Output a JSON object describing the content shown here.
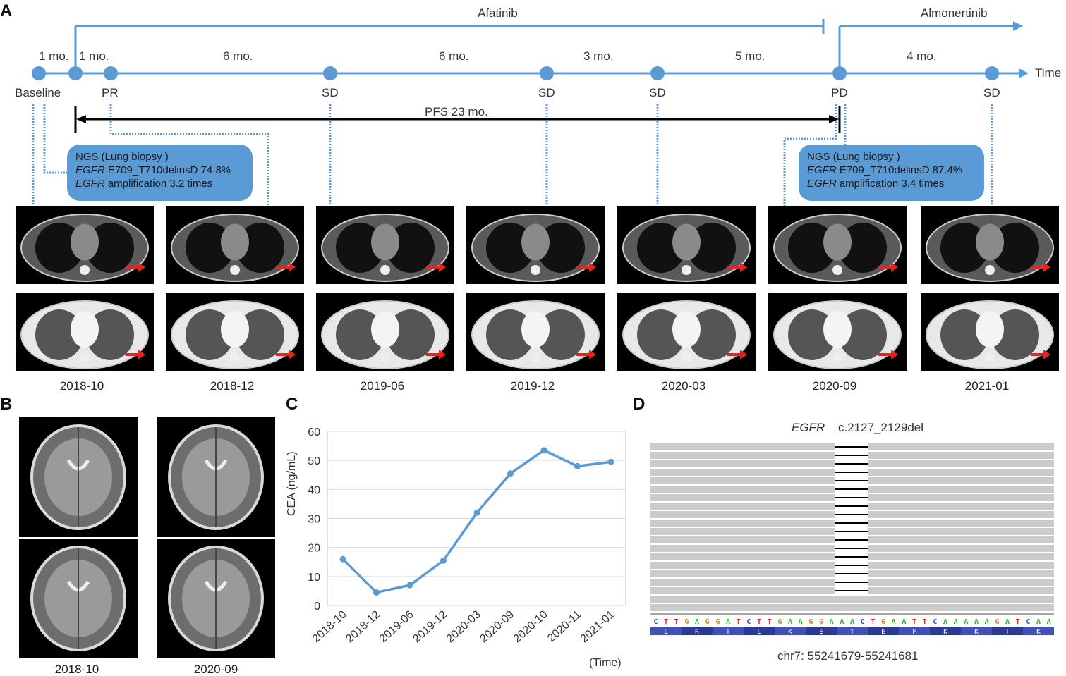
{
  "panels": {
    "a": "A",
    "b": "B",
    "c": "C",
    "d": "D"
  },
  "timeline": {
    "drug1": "Afatinib",
    "drug2": "Almonertinib",
    "axis_label": "Time",
    "intervals": [
      "1 mo.",
      "1 mo.",
      "6 mo.",
      "6 mo.",
      "3 mo.",
      "5 mo.",
      "4 mo."
    ],
    "points": [
      "Baseline",
      "PR",
      "SD",
      "SD",
      "SD",
      "PD",
      "SD"
    ],
    "pfs": "PFS  23 mo."
  },
  "ngs1": {
    "title": "NGS (Lung biopsy )",
    "gene1": "EGFR",
    "mut": " E709_T710delinsD  74.8%",
    "gene2": "EGFR",
    "amp": " amplification  3.2 times"
  },
  "ngs2": {
    "title": "NGS (Lung biopsy )",
    "gene1": "EGFR",
    "mut": " E709_T710delinsD  87.4%",
    "gene2": "EGFR",
    "amp": " amplification  3.4 times"
  },
  "scan_dates": [
    "2018-10",
    "2018-12",
    "2019-06",
    "2019-12",
    "2020-03",
    "2020-09",
    "2021-01"
  ],
  "mri_dates": [
    "2018-10",
    "2020-09"
  ],
  "chart_data": {
    "type": "line",
    "categories": [
      "2018-10",
      "2018-12",
      "2019-06",
      "2019-12",
      "2020-03",
      "2020-09",
      "2020-10",
      "2020-11",
      "2021-01"
    ],
    "series": [
      {
        "values": [
          16,
          4.5,
          7,
          15.5,
          32,
          45.5,
          53.5,
          48,
          49.5
        ]
      }
    ],
    "ylabel": "CEA (ng/mL)",
    "xlabel": "(Time)",
    "ylim": [
      0,
      60
    ],
    "yticks": [
      0,
      10,
      20,
      30,
      40,
      50,
      60
    ],
    "grid": true,
    "color": "#5b9bd5"
  },
  "igv": {
    "gene": "EGFR",
    "variant": "c.2127_2129del",
    "sequence": "CTTGAGGATCTTGAAGGAAACTGAATTCAAAAAGATCAA",
    "aminoacids": [
      "L",
      "R",
      "I",
      "L",
      "K",
      "E",
      "T",
      "E",
      "F",
      "K",
      "K",
      "I",
      "K"
    ],
    "locus": "chr7: 55241679-55241681"
  },
  "colors": {
    "timeline": "#5b9bd5",
    "accent_red": "#e8231a"
  }
}
